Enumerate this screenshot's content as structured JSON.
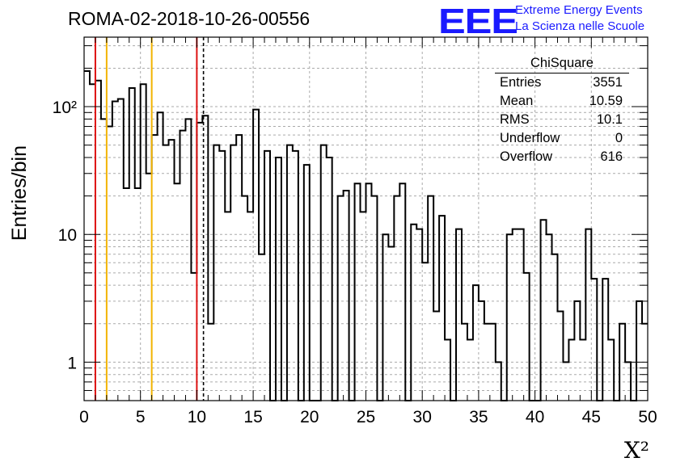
{
  "header": {
    "title": "ROMA-02-2018-10-26-00556"
  },
  "logo": {
    "mark": "EEE",
    "line1": "Extreme Energy Events",
    "line2": "La Scienza nelle Scuole"
  },
  "stats_box": {
    "title": "ChiSquare",
    "rows": [
      {
        "label": "Entries",
        "value": "3551"
      },
      {
        "label": "Mean",
        "value": "10.59"
      },
      {
        "label": "RMS",
        "value": "10.1"
      },
      {
        "label": "Underflow",
        "value": "0"
      },
      {
        "label": "Overflow",
        "value": "616"
      }
    ]
  },
  "chart_data": {
    "type": "histogram",
    "title": "ROMA-02-2018-10-26-00556",
    "xlabel": "X²",
    "ylabel": "Entries/bin",
    "xlim": [
      0,
      50
    ],
    "ylim": [
      0.5,
      350
    ],
    "y_scale": "log",
    "grid": true,
    "x_ticks": [
      0,
      5,
      10,
      15,
      20,
      25,
      30,
      35,
      40,
      45,
      50
    ],
    "y_tick_labels": [
      {
        "value": 1,
        "label": "1"
      },
      {
        "value": 10,
        "label": "10"
      },
      {
        "value": 100,
        "label": "10²"
      }
    ],
    "bin_width": 0.5,
    "bin_contents": [
      190,
      150,
      160,
      80,
      70,
      110,
      115,
      23,
      140,
      23,
      150,
      30,
      60,
      90,
      50,
      55,
      25,
      65,
      80,
      5,
      75,
      85,
      2,
      50,
      45,
      15,
      50,
      60,
      20,
      15,
      95,
      7,
      45,
      0,
      40,
      0,
      50,
      45,
      0,
      35,
      0,
      0,
      50,
      40,
      0,
      20,
      22,
      0,
      25,
      15,
      25,
      20,
      0,
      10,
      8,
      20,
      25,
      0,
      12,
      11,
      6,
      20,
      2.5,
      14,
      1.5,
      0,
      11,
      2,
      1.5,
      4,
      3,
      2,
      2,
      1,
      0,
      10,
      11,
      11,
      5,
      0,
      0,
      13,
      10,
      7,
      2.5,
      1,
      1.5,
      3,
      1.5,
      11,
      4.5,
      0,
      4.5,
      1.5,
      0,
      2,
      1,
      0,
      3,
      2
    ],
    "vertical_lines": [
      {
        "x": 1,
        "color": "#dd1111",
        "style": "solid"
      },
      {
        "x": 2,
        "color": "#f2b400",
        "style": "solid"
      },
      {
        "x": 6,
        "color": "#f2b400",
        "style": "solid"
      },
      {
        "x": 10,
        "color": "#dd1111",
        "style": "solid"
      },
      {
        "x": 10.59,
        "color": "#000000",
        "style": "dashed"
      }
    ]
  }
}
